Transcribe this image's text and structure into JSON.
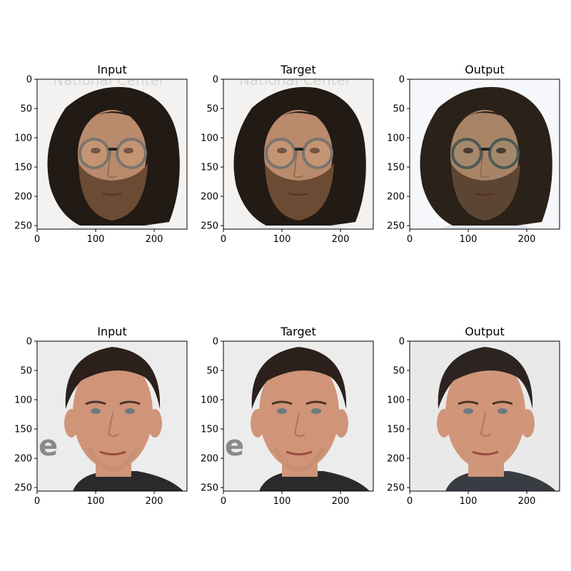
{
  "figure": {
    "rows": [
      {
        "panels": [
          {
            "title": "Input",
            "image": "face-bearded-man-glasses-input",
            "colors": {
              "bg": "#f4f2f0",
              "hair": "#221a14",
              "skin": "#b98a6c",
              "beard": "#6b4b33",
              "glasses": "#7a7470",
              "shirt": "#e8e8ea"
            }
          },
          {
            "title": "Target",
            "image": "face-bearded-man-glasses-target",
            "colors": {
              "bg": "#f4f2f0",
              "hair": "#221a14",
              "skin": "#b98a6c",
              "beard": "#6b4b33",
              "glasses": "#7a7470",
              "shirt": "#e8e8ea"
            }
          },
          {
            "title": "Output",
            "image": "face-bearded-man-glasses-output",
            "colors": {
              "bg": "#f6f7fa",
              "hair": "#2a2118",
              "skin": "#a88466",
              "beard": "#5c4532",
              "glasses": "#4b5a52",
              "shirt": "#dfe6ee"
            }
          }
        ]
      },
      {
        "panels": [
          {
            "title": "Input",
            "image": "face-man-short-hair-input",
            "colors": {
              "bg": "#ececec",
              "hair": "#2b201b",
              "skin": "#d09478",
              "beard": "#b98c70",
              "glasses": "",
              "shirt": "#2a2a2c"
            }
          },
          {
            "title": "Target",
            "image": "face-man-short-hair-target",
            "colors": {
              "bg": "#ececec",
              "hair": "#2b201b",
              "skin": "#d09478",
              "beard": "#b98c70",
              "glasses": "",
              "shirt": "#2a2a2c"
            }
          },
          {
            "title": "Output",
            "image": "face-man-short-hair-output",
            "colors": {
              "bg": "#e9e9ea",
              "hair": "#2c2420",
              "skin": "#d19679",
              "beard": "#c49478",
              "glasses": "",
              "shirt": "#3a3c44"
            }
          }
        ]
      }
    ],
    "xticks": [
      "0",
      "100",
      "200"
    ],
    "yticks": [
      "0",
      "50",
      "100",
      "150",
      "200",
      "250"
    ],
    "watermark_text_row1": "National Center",
    "watermark_text_row2": "e"
  }
}
